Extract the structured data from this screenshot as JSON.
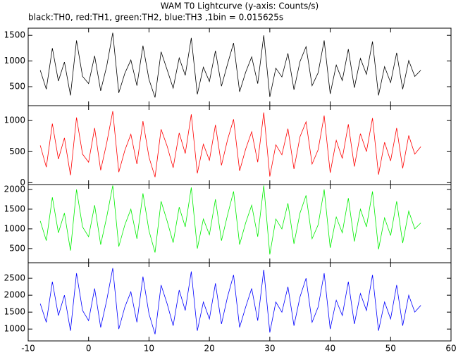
{
  "chart_data": [
    {
      "type": "line",
      "title": "WAM T0 Lightcurve (y-axis: Counts/s)",
      "subtitle": "black:TH0, red:TH1, green:TH2, blue:TH3 ,1bin = 0.015625s",
      "color": "#000000",
      "xlim": [
        -10,
        60
      ],
      "xticks": [
        -10,
        0,
        10,
        20,
        30,
        40,
        50,
        60
      ],
      "ylim": [
        130,
        1640
      ],
      "yticks": [
        500,
        1000,
        1500
      ],
      "x": [
        -8,
        -7,
        -6,
        -5,
        -4,
        -3,
        -2,
        -1,
        0,
        1,
        2,
        3,
        4,
        5,
        6,
        7,
        8,
        9,
        10,
        11,
        12,
        13,
        14,
        15,
        16,
        17,
        18,
        19,
        20,
        21,
        22,
        23,
        24,
        25,
        26,
        27,
        28,
        29,
        30,
        31,
        32,
        33,
        34,
        35,
        36,
        37,
        38,
        39,
        40,
        41,
        42,
        43,
        44,
        45,
        46,
        47,
        48,
        49,
        50,
        51,
        52,
        53,
        54,
        55
      ],
      "values": [
        820,
        450,
        1250,
        610,
        980,
        330,
        1400,
        700,
        560,
        1100,
        420,
        900,
        1550,
        380,
        760,
        1020,
        520,
        1300,
        640,
        290,
        1180,
        830,
        470,
        1060,
        720,
        1450,
        350,
        880,
        600,
        1200,
        510,
        940,
        1350,
        400,
        780,
        1080,
        560,
        1500,
        300,
        860,
        690,
        1150,
        440,
        990,
        1280,
        520,
        770,
        1400,
        360,
        920,
        620,
        1230,
        480,
        1050,
        740,
        1380,
        330,
        890,
        580,
        1160,
        450,
        1010,
        700,
        820
      ]
    },
    {
      "type": "line",
      "color": "#ff0000",
      "xlim": [
        -10,
        60
      ],
      "xticks": [
        -10,
        0,
        10,
        20,
        30,
        40,
        50,
        60
      ],
      "ylim": [
        -30,
        1240
      ],
      "yticks": [
        0,
        500,
        1000
      ],
      "x": [
        -8,
        -7,
        -6,
        -5,
        -4,
        -3,
        -2,
        -1,
        0,
        1,
        2,
        3,
        4,
        5,
        6,
        7,
        8,
        9,
        10,
        11,
        12,
        13,
        14,
        15,
        16,
        17,
        18,
        19,
        20,
        21,
        22,
        23,
        24,
        25,
        26,
        27,
        28,
        29,
        30,
        31,
        32,
        33,
        34,
        35,
        36,
        37,
        38,
        39,
        40,
        41,
        42,
        43,
        44,
        45,
        46,
        47,
        48,
        49,
        50,
        51,
        52,
        53,
        54,
        55
      ],
      "values": [
        600,
        250,
        950,
        380,
        720,
        120,
        1050,
        460,
        330,
        880,
        200,
        640,
        1150,
        170,
        520,
        780,
        300,
        990,
        410,
        90,
        860,
        590,
        240,
        800,
        470,
        1100,
        150,
        620,
        360,
        930,
        280,
        690,
        1020,
        190,
        540,
        820,
        330,
        1130,
        100,
        610,
        450,
        870,
        220,
        740,
        980,
        300,
        530,
        1080,
        160,
        680,
        390,
        940,
        260,
        790,
        500,
        1040,
        130,
        650,
        350,
        880,
        230,
        760,
        460,
        580
      ]
    },
    {
      "type": "line",
      "color": "#00ee00",
      "xlim": [
        -10,
        60
      ],
      "xticks": [
        -10,
        0,
        10,
        20,
        30,
        40,
        50,
        60
      ],
      "ylim": [
        140,
        2125
      ],
      "yticks": [
        500,
        1000,
        1500,
        2000
      ],
      "x": [
        -8,
        -7,
        -6,
        -5,
        -4,
        -3,
        -2,
        -1,
        0,
        1,
        2,
        3,
        4,
        5,
        6,
        7,
        8,
        9,
        10,
        11,
        12,
        13,
        14,
        15,
        16,
        17,
        18,
        19,
        20,
        21,
        22,
        23,
        24,
        25,
        26,
        27,
        28,
        29,
        30,
        31,
        32,
        33,
        34,
        35,
        36,
        37,
        38,
        39,
        40,
        41,
        42,
        43,
        44,
        45,
        46,
        47,
        48,
        49,
        50,
        51,
        52,
        53,
        54,
        55
      ],
      "values": [
        1200,
        700,
        1800,
        900,
        1400,
        450,
        2000,
        1050,
        800,
        1600,
        600,
        1300,
        2100,
        550,
        1100,
        1500,
        750,
        1900,
        950,
        400,
        1700,
        1200,
        650,
        1550,
        1050,
        2050,
        500,
        1250,
        850,
        1750,
        700,
        1350,
        1950,
        600,
        1150,
        1600,
        800,
        2100,
        350,
        1250,
        1000,
        1650,
        620,
        1400,
        1850,
        750,
        1100,
        2000,
        520,
        1300,
        900,
        1780,
        680,
        1500,
        1050,
        1950,
        480,
        1280,
        830,
        1700,
        640,
        1450,
        1000,
        1150
      ]
    },
    {
      "type": "line",
      "color": "#0000ff",
      "xlim": [
        -10,
        60
      ],
      "xticks": [
        -10,
        0,
        10,
        20,
        30,
        40,
        50,
        60
      ],
      "ylim": [
        650,
        2960
      ],
      "yticks": [
        1000,
        1500,
        2000,
        2500
      ],
      "x": [
        -8,
        -7,
        -6,
        -5,
        -4,
        -3,
        -2,
        -1,
        0,
        1,
        2,
        3,
        4,
        5,
        6,
        7,
        8,
        9,
        10,
        11,
        12,
        13,
        14,
        15,
        16,
        17,
        18,
        19,
        20,
        21,
        22,
        23,
        24,
        25,
        26,
        27,
        28,
        29,
        30,
        31,
        32,
        33,
        34,
        35,
        36,
        37,
        38,
        39,
        40,
        41,
        42,
        43,
        44,
        45,
        46,
        47,
        48,
        49,
        50,
        51,
        52,
        53,
        54,
        55
      ],
      "values": [
        1750,
        1200,
        2400,
        1400,
        2000,
        950,
        2650,
        1550,
        1250,
        2200,
        1050,
        1850,
        2800,
        1000,
        1650,
        2100,
        1200,
        2550,
        1450,
        850,
        2300,
        1750,
        1100,
        2150,
        1550,
        2700,
        950,
        1800,
        1300,
        2350,
        1150,
        1950,
        2600,
        1050,
        1650,
        2200,
        1250,
        2750,
        900,
        1800,
        1500,
        2250,
        1100,
        1950,
        2500,
        1200,
        1650,
        2650,
        1000,
        1850,
        1400,
        2400,
        1150,
        2050,
        1550,
        2600,
        950,
        1800,
        1300,
        2300,
        1100,
        2000,
        1500,
        1700
      ]
    }
  ]
}
